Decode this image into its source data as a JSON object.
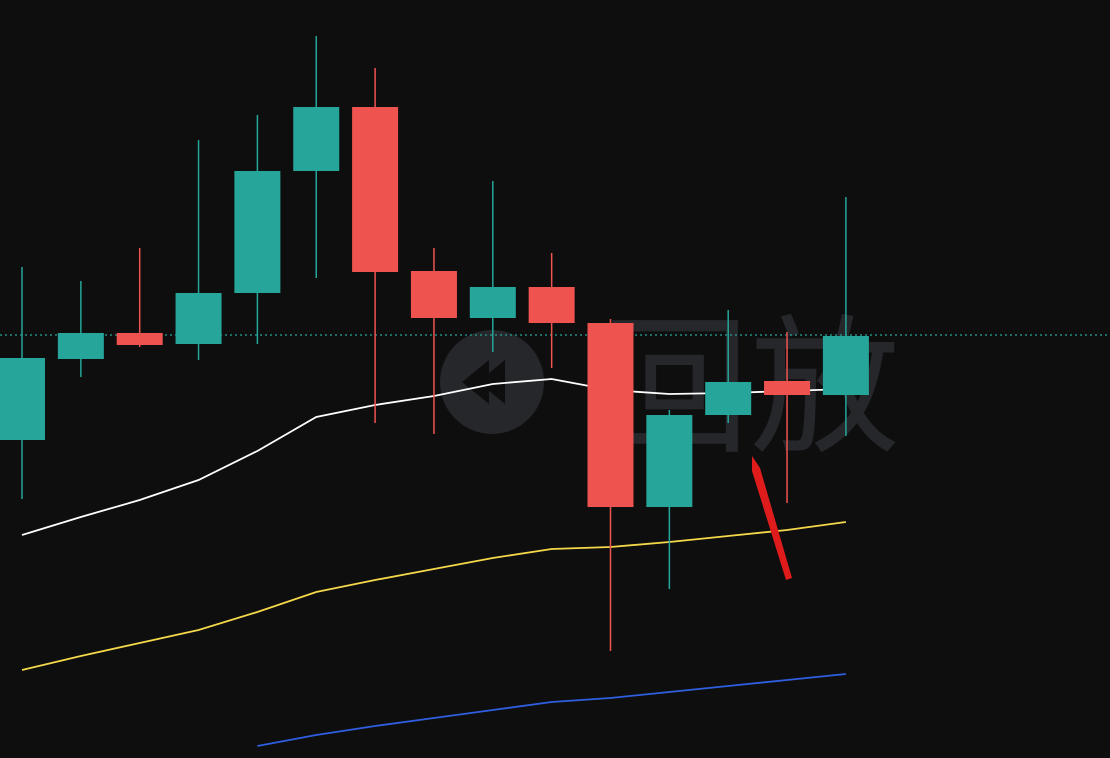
{
  "chart_data": {
    "type": "candlestick",
    "watermark": "回放",
    "ylim": [
      0,
      758
    ],
    "up_color": "#26a69a",
    "down_color": "#ef5350",
    "price_line": 423,
    "open": [
      318,
      399,
      425,
      414,
      465,
      587,
      651,
      487,
      440,
      471,
      435,
      251,
      343,
      377,
      363
    ],
    "high": [
      491,
      477,
      510,
      618,
      643,
      722,
      690,
      510,
      577,
      505,
      439,
      348,
      448,
      426,
      561
    ],
    "low": [
      259,
      381,
      411,
      398,
      414,
      480,
      335,
      324,
      406,
      390,
      107,
      169,
      335,
      255,
      322
    ],
    "close": [
      400,
      425,
      413,
      465,
      587,
      651,
      486,
      440,
      471,
      435,
      251,
      343,
      376,
      363,
      422
    ],
    "lines": [
      {
        "color": "#ffffff",
        "values": [
          223,
          241,
          258,
          278,
          307,
          341,
          353,
          362,
          374,
          379,
          368,
          364,
          365,
          367,
          369
        ]
      },
      {
        "color": "#f5d84a",
        "values": [
          88,
          102,
          115,
          128,
          146,
          166,
          178,
          189,
          200,
          209,
          211,
          216,
          222,
          228,
          236
        ]
      },
      {
        "color": "#2f5fe0",
        "values": [
          null,
          null,
          null,
          null,
          12,
          23,
          32,
          40,
          48,
          56,
          60,
          66,
          72,
          78,
          84
        ]
      }
    ]
  }
}
